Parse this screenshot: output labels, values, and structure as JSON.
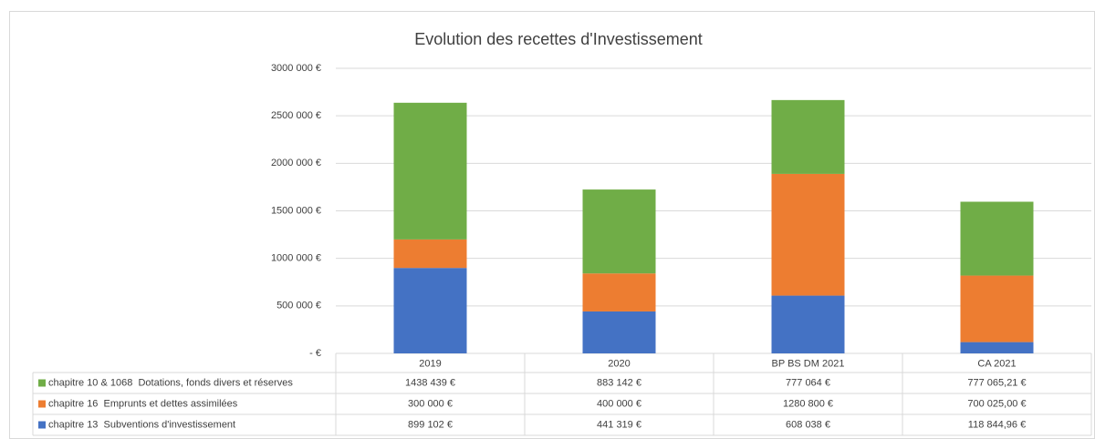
{
  "chart_data": {
    "type": "stacked_bar",
    "title": "Evolution des recettes d'Investissement",
    "categories": [
      "2019",
      "2020",
      "BP BS DM 2021",
      "CA 2021"
    ],
    "series": [
      {
        "name": "chapitre 10 & 1068  Dotations, fonds divers et réserves",
        "color": "#70ad47",
        "values": [
          1438439,
          883142,
          777064,
          777065.21
        ],
        "value_labels": [
          "1438 439 €",
          "883 142 €",
          "777 064 €",
          "777 065,21 €"
        ]
      },
      {
        "name": "chapitre 16  Emprunts et dettes assimilées",
        "color": "#ed7d31",
        "values": [
          300000,
          400000,
          1280800,
          700025.0
        ],
        "value_labels": [
          "300 000 €",
          "400 000 €",
          "1280 800 €",
          "700 025,00 €"
        ]
      },
      {
        "name": "chapitre 13  Subventions d'investissement",
        "color": "#4472c4",
        "values": [
          899102,
          441319,
          608038,
          118844.96
        ],
        "value_labels": [
          "899 102 €",
          "441 319 €",
          "608 038 €",
          "118 844,96 €"
        ]
      }
    ],
    "ylim": [
      0,
      3000000
    ],
    "yticks": [
      {
        "value": 0,
        "label": " -   €"
      },
      {
        "value": 500000,
        "label": "500 000 €"
      },
      {
        "value": 1000000,
        "label": "1000 000 €"
      },
      {
        "value": 1500000,
        "label": "1500 000 €"
      },
      {
        "value": 2000000,
        "label": "2000 000 €"
      },
      {
        "value": 2500000,
        "label": "2500 000 €"
      },
      {
        "value": 3000000,
        "label": "3000 000 €"
      }
    ],
    "grid": true
  }
}
